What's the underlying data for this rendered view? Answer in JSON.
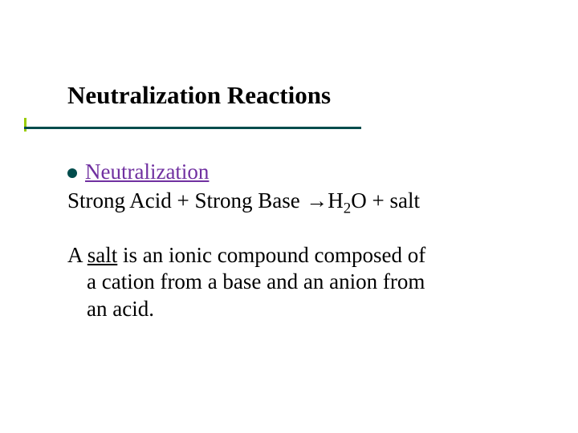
{
  "colors": {
    "title_text": "#000000",
    "underline": "#004c4c",
    "accent": "#99cc00",
    "bullet": "#004c4c",
    "link": "#7030a0",
    "body_text": "#000000",
    "background": "#ffffff"
  },
  "typography": {
    "family": "Times New Roman",
    "title_fontsize_pt": 31,
    "body_fontsize_pt": 27,
    "title_weight": "bold",
    "body_weight": "normal"
  },
  "title": "Neutralization Reactions",
  "bullet": {
    "term": "Neutralization"
  },
  "equation": {
    "lhs1": "Strong Acid",
    "plus1": " + ",
    "lhs2": "Strong Base",
    "arrow": " →",
    "rhs1_pre": "H",
    "rhs1_sub": "2",
    "rhs1_post": "O",
    "plus2": " + ",
    "rhs2": "salt"
  },
  "definition": {
    "line1_pre": "A ",
    "line1_term": "salt",
    "line1_post": " is an ionic compound composed of",
    "line2": "a cation from a base and an anion from",
    "line3": "an acid."
  }
}
